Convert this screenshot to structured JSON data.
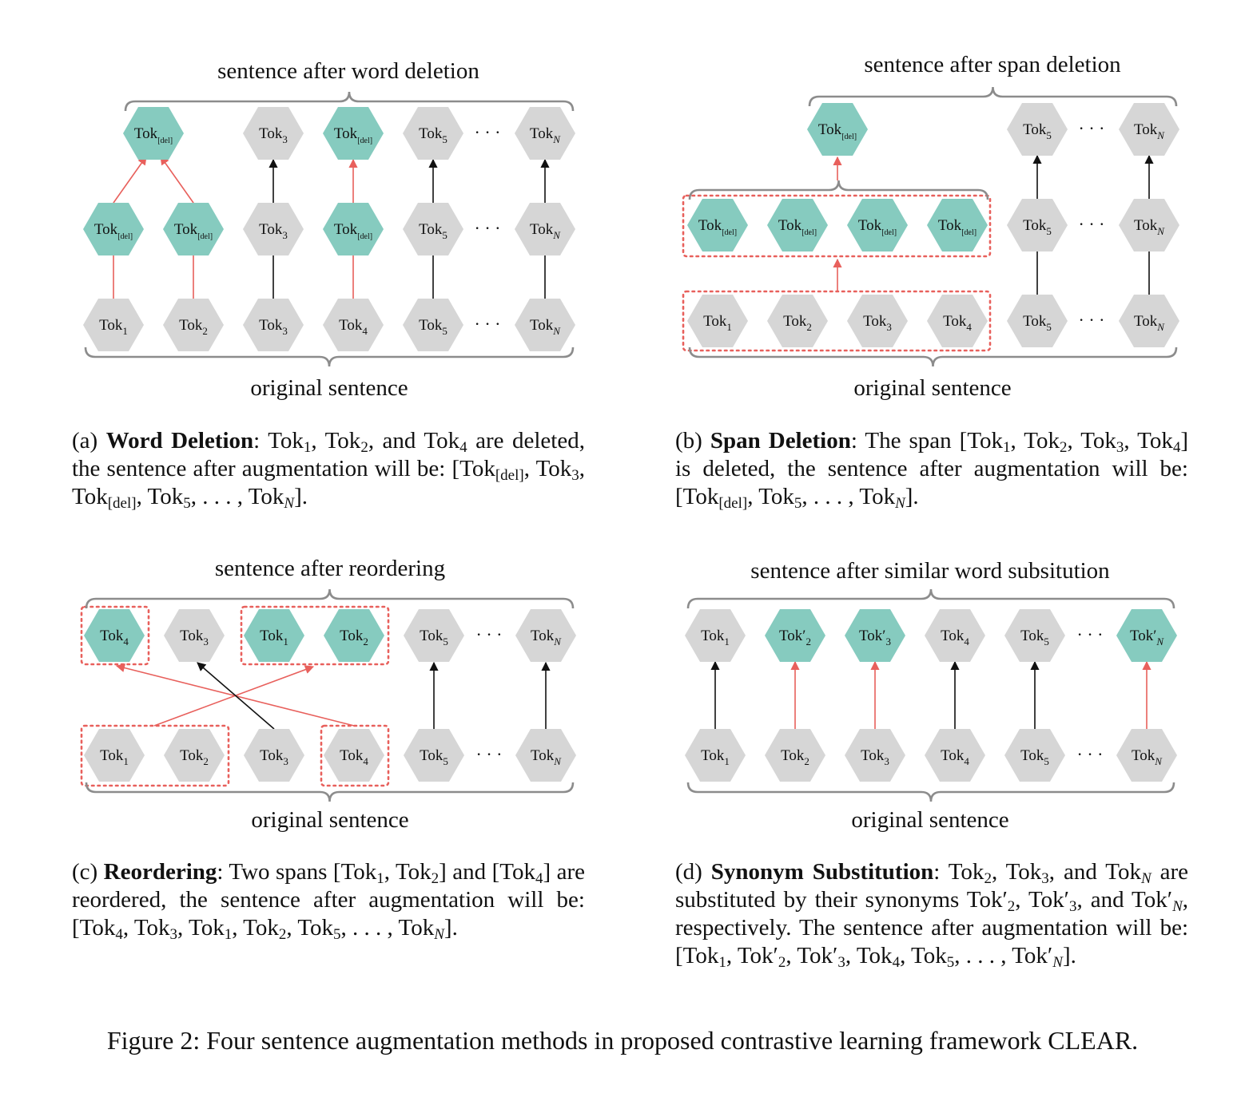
{
  "panels": [
    {
      "id": "a",
      "top_label": "sentence after word deletion",
      "bottom_label": "original sentence",
      "caption": {
        "letter": "(a)",
        "name": "Word Deletion",
        "html": "<span data-name=\"caption-a-letter\">(a)</span> <b data-name=\"caption-a-name\">Word Deletion</b>: Tok<sub>1</sub>, Tok<sub>2</sub>, and Tok<sub>4</sub> are deleted, the sentence after augmentation will be: [Tok<sub>[del]</sub>, Tok<sub>3</sub>, Tok<sub>[del]</sub>, Tok<sub>5</sub>, . . . , Tok<sub><i>N</i></sub>]."
      }
    },
    {
      "id": "b",
      "top_label": "sentence after span deletion",
      "bottom_label": "original sentence",
      "caption": {
        "letter": "(b)",
        "name": "Span Deletion",
        "html": "<span data-name=\"caption-b-letter\">(b)</span> <b data-name=\"caption-b-name\">Span Deletion</b>: The span [Tok<sub>1</sub>, Tok<sub>2</sub>, Tok<sub>3</sub>, Tok<sub>4</sub>] is deleted, the sentence after augmentation will be: [Tok<sub>[del]</sub>, Tok<sub>5</sub>, . . . , Tok<sub><i>N</i></sub>]."
      }
    },
    {
      "id": "c",
      "top_label": "sentence after reordering",
      "bottom_label": "original sentence",
      "caption": {
        "letter": "(c)",
        "name": "Reordering",
        "html": "<span data-name=\"caption-c-letter\">(c)</span> <b data-name=\"caption-c-name\">Reordering</b>: Two spans [Tok<sub>1</sub>, Tok<sub>2</sub>] and [Tok<sub>4</sub>] are reordered, the sentence after augmentation will be: [Tok<sub>4</sub>, Tok<sub>3</sub>, Tok<sub>1</sub>, Tok<sub>2</sub>, Tok<sub>5</sub>, . . . , Tok<sub><i>N</i></sub>]."
      }
    },
    {
      "id": "d",
      "top_label": "sentence after similar word subsitution",
      "bottom_label": "original sentence",
      "caption": {
        "letter": "(d)",
        "name": "Synonym Substitution",
        "html": "<span data-name=\"caption-d-letter\">(d)</span> <b data-name=\"caption-d-name\">Synonym Substitution</b>: Tok<sub>2</sub>, Tok<sub>3</sub>, and Tok<sub><i>N</i></sub> are substituted by their synonyms Tok′<sub>2</sub>, Tok′<sub>3</sub>, and Tok′<sub><i>N</i></sub>, respectively. The sentence after augmentation will be: [Tok<sub>1</sub>, Tok′<sub>2</sub>, Tok′<sub>3</sub>, Tok<sub>4</sub>, Tok<sub>5</sub>, . . . , Tok′<sub><i>N</i></sub>]."
      }
    }
  ],
  "token_base": "Tok",
  "ellipsis": "· · ·",
  "figure_caption": "Figure 2: Four sentence augmentation methods in proposed contrastive learning framework CLEAR.",
  "colors": {
    "original_token": "#d6d6d6",
    "augmented_token": "#86cbbf",
    "augment_arrow": "#e8605c",
    "copy_arrow": "#111111",
    "brace": "#8c8c8c",
    "span_box": "#e8605c"
  }
}
